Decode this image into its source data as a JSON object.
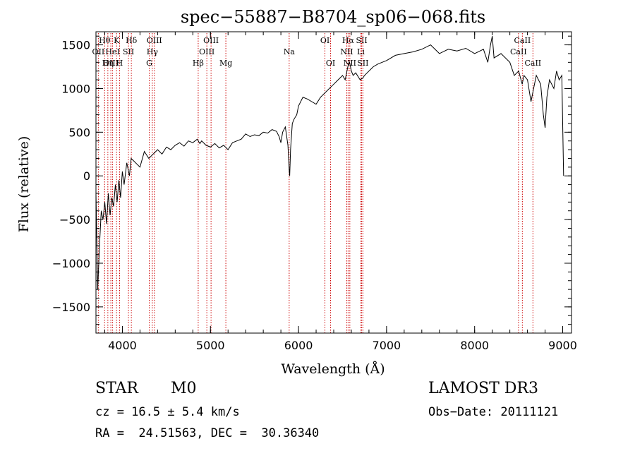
{
  "chart_data": {
    "type": "line",
    "title": "spec−55887−B8704_sp06−068.fits",
    "xlabel": "Wavelength (Å)",
    "ylabel": "Flux (relative)",
    "xlim": [
      3700,
      9100
    ],
    "ylim": [
      -1800,
      1650
    ],
    "x_ticks": [
      4000,
      5000,
      6000,
      7000,
      8000,
      9000
    ],
    "y_ticks": [
      -1500,
      -1000,
      -500,
      0,
      500,
      1000,
      1500
    ],
    "y_tick_labels": [
      "−1500",
      "−1000",
      "−500",
      "0",
      "500",
      "1000",
      "1500"
    ],
    "grid": false,
    "legend": "none",
    "line_color": "#000000",
    "marker_color": "#cc0000",
    "series": [
      {
        "values": [
          [
            3700,
            -200
          ],
          [
            3720,
            -1300
          ],
          [
            3740,
            -800
          ],
          [
            3760,
            -400
          ],
          [
            3780,
            -500
          ],
          [
            3800,
            -300
          ],
          [
            3820,
            -550
          ],
          [
            3840,
            -200
          ],
          [
            3860,
            -450
          ],
          [
            3880,
            -250
          ],
          [
            3900,
            -350
          ],
          [
            3920,
            -100
          ],
          [
            3940,
            -300
          ],
          [
            3960,
            -50
          ],
          [
            3980,
            -250
          ],
          [
            4000,
            50
          ],
          [
            4020,
            -100
          ],
          [
            4050,
            150
          ],
          [
            4080,
            0
          ],
          [
            4100,
            200
          ],
          [
            4150,
            150
          ],
          [
            4200,
            100
          ],
          [
            4250,
            280
          ],
          [
            4300,
            200
          ],
          [
            4350,
            250
          ],
          [
            4400,
            300
          ],
          [
            4450,
            250
          ],
          [
            4500,
            330
          ],
          [
            4550,
            300
          ],
          [
            4600,
            350
          ],
          [
            4650,
            380
          ],
          [
            4700,
            340
          ],
          [
            4750,
            400
          ],
          [
            4800,
            380
          ],
          [
            4850,
            420
          ],
          [
            4880,
            370
          ],
          [
            4900,
            400
          ],
          [
            4950,
            350
          ],
          [
            5000,
            330
          ],
          [
            5050,
            370
          ],
          [
            5100,
            320
          ],
          [
            5150,
            350
          ],
          [
            5200,
            300
          ],
          [
            5250,
            380
          ],
          [
            5300,
            400
          ],
          [
            5350,
            420
          ],
          [
            5400,
            480
          ],
          [
            5450,
            450
          ],
          [
            5500,
            470
          ],
          [
            5550,
            460
          ],
          [
            5600,
            500
          ],
          [
            5650,
            490
          ],
          [
            5700,
            530
          ],
          [
            5750,
            510
          ],
          [
            5780,
            450
          ],
          [
            5800,
            380
          ],
          [
            5820,
            500
          ],
          [
            5850,
            560
          ],
          [
            5880,
            350
          ],
          [
            5895,
            50
          ],
          [
            5900,
            0
          ],
          [
            5910,
            300
          ],
          [
            5930,
            600
          ],
          [
            5950,
            650
          ],
          [
            5980,
            700
          ],
          [
            6000,
            800
          ],
          [
            6050,
            900
          ],
          [
            6100,
            880
          ],
          [
            6150,
            850
          ],
          [
            6200,
            820
          ],
          [
            6250,
            900
          ],
          [
            6300,
            950
          ],
          [
            6350,
            1000
          ],
          [
            6400,
            1050
          ],
          [
            6450,
            1100
          ],
          [
            6500,
            1150
          ],
          [
            6530,
            1100
          ],
          [
            6560,
            1250
          ],
          [
            6580,
            1300
          ],
          [
            6600,
            1200
          ],
          [
            6620,
            1150
          ],
          [
            6650,
            1180
          ],
          [
            6700,
            1100
          ],
          [
            6730,
            1120
          ],
          [
            6750,
            1150
          ],
          [
            6800,
            1200
          ],
          [
            6850,
            1250
          ],
          [
            6900,
            1280
          ],
          [
            6950,
            1300
          ],
          [
            7000,
            1320
          ],
          [
            7100,
            1380
          ],
          [
            7200,
            1400
          ],
          [
            7300,
            1420
          ],
          [
            7400,
            1450
          ],
          [
            7500,
            1500
          ],
          [
            7600,
            1400
          ],
          [
            7700,
            1450
          ],
          [
            7800,
            1430
          ],
          [
            7900,
            1460
          ],
          [
            8000,
            1400
          ],
          [
            8100,
            1450
          ],
          [
            8150,
            1300
          ],
          [
            8180,
            1500
          ],
          [
            8200,
            1600
          ],
          [
            8220,
            1350
          ],
          [
            8300,
            1400
          ],
          [
            8400,
            1300
          ],
          [
            8450,
            1150
          ],
          [
            8500,
            1200
          ],
          [
            8540,
            1050
          ],
          [
            8560,
            1150
          ],
          [
            8600,
            1100
          ],
          [
            8640,
            850
          ],
          [
            8670,
            1000
          ],
          [
            8700,
            1150
          ],
          [
            8750,
            1050
          ],
          [
            8780,
            700
          ],
          [
            8800,
            550
          ],
          [
            8820,
            900
          ],
          [
            8850,
            1100
          ],
          [
            8900,
            1000
          ],
          [
            8930,
            1200
          ],
          [
            8960,
            1100
          ],
          [
            8990,
            1150
          ],
          [
            9010,
            0
          ]
        ]
      }
    ],
    "emission_lines": [
      {
        "label": "Hθ",
        "x": 3798,
        "row": 0
      },
      {
        "label": "OII",
        "x": 3727,
        "row": 1
      },
      {
        "label": "OIII",
        "x": 3869,
        "row": 2
      },
      {
        "label": "K",
        "x": 3934,
        "row": 0
      },
      {
        "label": "HeI",
        "x": 3889,
        "row": 1
      },
      {
        "label": "Hη",
        "x": 3835,
        "row": 2
      },
      {
        "label": "SII",
        "x": 4069,
        "row": 1
      },
      {
        "label": "H",
        "x": 3968,
        "row": 2
      },
      {
        "label": "Hδ",
        "x": 4102,
        "row": 0
      },
      {
        "label": "OIII",
        "x": 4363,
        "row": 0
      },
      {
        "label": "Hγ",
        "x": 4340,
        "row": 1
      },
      {
        "label": "G",
        "x": 4305,
        "row": 2
      },
      {
        "label": "Hβ",
        "x": 4861,
        "row": 2
      },
      {
        "label": "OIII",
        "x": 5007,
        "row": 0
      },
      {
        "label": "OIII",
        "x": 4959,
        "row": 1
      },
      {
        "label": "Mg",
        "x": 5175,
        "row": 2
      },
      {
        "label": "Na",
        "x": 5894,
        "row": 1
      },
      {
        "label": "OI",
        "x": 6300,
        "row": 0
      },
      {
        "label": "OI",
        "x": 6364,
        "row": 2
      },
      {
        "label": "Hα",
        "x": 6563,
        "row": 0
      },
      {
        "label": "SII",
        "x": 6717,
        "row": 0
      },
      {
        "label": "NII",
        "x": 6548,
        "row": 1
      },
      {
        "label": "Li",
        "x": 6708,
        "row": 1
      },
      {
        "label": "NII",
        "x": 6583,
        "row": 2
      },
      {
        "label": "SII",
        "x": 6731,
        "row": 2
      },
      {
        "label": "CaII",
        "x": 8542,
        "row": 0
      },
      {
        "label": "CaII",
        "x": 8498,
        "row": 1
      },
      {
        "label": "CaII",
        "x": 8662,
        "row": 2
      }
    ]
  },
  "info": {
    "object_class": "STAR",
    "subclass": "M0",
    "survey": "LAMOST DR3",
    "redshift": "cz = 16.5 ± 5.4 km/s",
    "obs_date": "Obs−Date: 20111121",
    "coords": "RA =  24.51563, DEC =  30.36340"
  }
}
